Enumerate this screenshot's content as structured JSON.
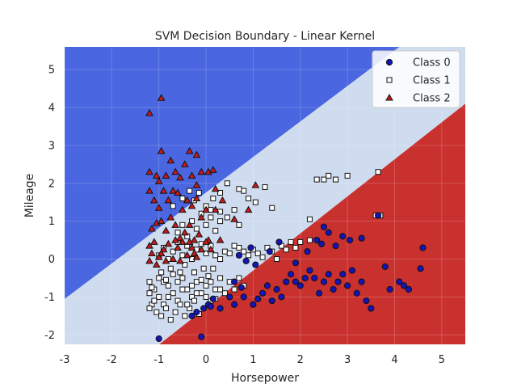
{
  "chart_data": {
    "type": "scatter",
    "title": "SVM Decision Boundary - Linear Kernel",
    "xlabel": "Horsepower",
    "ylabel": "Mileage",
    "xlim": [
      -3,
      5.5
    ],
    "ylim": [
      -2.25,
      5.6
    ],
    "xticks": [
      -3,
      -2,
      -1,
      0,
      1,
      2,
      3,
      4,
      5
    ],
    "yticks": [
      -2,
      -1,
      0,
      1,
      2,
      3,
      4,
      5
    ],
    "grid": true,
    "legend_position": "top-right",
    "regions": [
      {
        "class": "Class 2",
        "color": "#c9312f",
        "boundary_lower": {
          "x0": -0.99,
          "x1": 5.5,
          "y_at_x0": -2.25,
          "y_at_x1": 4.1
        }
      },
      {
        "class": "Class 0",
        "color": "#4a66e0",
        "boundary_upper": {
          "x0": -3.0,
          "x1": 4.1,
          "y_at_x0": -1.05,
          "y_at_x1": 5.6
        }
      },
      {
        "class": "Class 1",
        "color": "#cfdcef"
      }
    ],
    "series": [
      {
        "name": "Class 0",
        "marker": "circle",
        "color": "#1414b8",
        "points": [
          [
            -1.0,
            -2.1
          ],
          [
            -0.1,
            -2.05
          ],
          [
            -0.3,
            -1.5
          ],
          [
            -0.2,
            -1.4
          ],
          [
            0.05,
            -1.2
          ],
          [
            0.15,
            -1.05
          ],
          [
            0.3,
            -1.3
          ],
          [
            0.5,
            -1.0
          ],
          [
            0.6,
            -1.2
          ],
          [
            0.8,
            -1.0
          ],
          [
            1.0,
            -1.2
          ],
          [
            1.1,
            -1.05
          ],
          [
            1.2,
            -0.9
          ],
          [
            1.3,
            -0.7
          ],
          [
            1.4,
            -1.1
          ],
          [
            1.5,
            -0.8
          ],
          [
            1.6,
            -1.0
          ],
          [
            1.7,
            -0.6
          ],
          [
            1.8,
            -0.4
          ],
          [
            1.9,
            -0.6
          ],
          [
            2.0,
            -0.7
          ],
          [
            2.1,
            -0.5
          ],
          [
            2.2,
            -0.3
          ],
          [
            2.3,
            -0.5
          ],
          [
            2.4,
            -0.9
          ],
          [
            2.5,
            -0.6
          ],
          [
            2.6,
            -0.4
          ],
          [
            2.7,
            -0.8
          ],
          [
            2.8,
            -0.6
          ],
          [
            2.9,
            -0.4
          ],
          [
            3.0,
            -0.7
          ],
          [
            3.1,
            -0.3
          ],
          [
            3.2,
            -0.9
          ],
          [
            3.3,
            -0.6
          ],
          [
            3.4,
            -1.1
          ],
          [
            3.5,
            -1.3
          ],
          [
            3.8,
            -0.2
          ],
          [
            3.9,
            -0.8
          ],
          [
            4.1,
            -0.6
          ],
          [
            4.2,
            -0.7
          ],
          [
            4.3,
            -0.8
          ],
          [
            4.55,
            -0.25
          ],
          [
            4.6,
            0.3
          ],
          [
            2.35,
            0.5
          ],
          [
            2.45,
            0.4
          ],
          [
            2.6,
            0.7
          ],
          [
            2.9,
            0.6
          ],
          [
            3.05,
            0.5
          ],
          [
            3.3,
            0.55
          ],
          [
            2.75,
            0.35
          ],
          [
            3.65,
            1.15
          ],
          [
            2.5,
            0.85
          ],
          [
            0.7,
            0.1
          ],
          [
            0.85,
            -0.05
          ],
          [
            1.35,
            0.2
          ],
          [
            1.55,
            0.45
          ],
          [
            1.9,
            -0.1
          ],
          [
            2.15,
            0.2
          ],
          [
            1.05,
            -0.15
          ],
          [
            0.95,
            0.3
          ],
          [
            0.6,
            -0.6
          ],
          [
            0.75,
            -0.75
          ],
          [
            -0.05,
            -1.3
          ],
          [
            0.1,
            -1.25
          ]
        ]
      },
      {
        "name": "Class 1",
        "marker": "square",
        "color": "#ffffff",
        "points": [
          [
            -1.2,
            -0.6
          ],
          [
            -1.1,
            -0.8
          ],
          [
            -1.0,
            -1.0
          ],
          [
            -0.9,
            -1.2
          ],
          [
            -0.8,
            -0.7
          ],
          [
            -0.7,
            -0.9
          ],
          [
            -0.6,
            -1.1
          ],
          [
            -0.5,
            -0.5
          ],
          [
            -0.4,
            -0.8
          ],
          [
            -0.3,
            -1.0
          ],
          [
            -0.2,
            -0.6
          ],
          [
            -0.1,
            -0.9
          ],
          [
            0.0,
            -0.7
          ],
          [
            0.1,
            -1.1
          ],
          [
            0.2,
            -0.8
          ],
          [
            0.3,
            -0.5
          ],
          [
            0.4,
            -0.9
          ],
          [
            -1.15,
            -1.2
          ],
          [
            -1.05,
            -1.4
          ],
          [
            -0.95,
            -1.5
          ],
          [
            -0.85,
            -1.3
          ],
          [
            -0.75,
            -1.6
          ],
          [
            -0.65,
            -1.4
          ],
          [
            -0.55,
            -1.2
          ],
          [
            -0.45,
            -1.5
          ],
          [
            -0.35,
            -1.3
          ],
          [
            -0.25,
            -1.1
          ],
          [
            -0.15,
            -1.45
          ],
          [
            -1.2,
            -0.9
          ],
          [
            -1.1,
            -1.1
          ],
          [
            -1.0,
            -0.5
          ],
          [
            -0.9,
            -0.6
          ],
          [
            -0.8,
            -1.0
          ],
          [
            -0.7,
            -0.4
          ],
          [
            -0.6,
            -0.6
          ],
          [
            -0.5,
            -0.8
          ],
          [
            -0.4,
            -1.2
          ],
          [
            -0.3,
            -0.7
          ],
          [
            -0.2,
            -0.9
          ],
          [
            -0.1,
            -0.55
          ],
          [
            0.0,
            -1.0
          ],
          [
            0.1,
            -0.6
          ],
          [
            0.2,
            -1.05
          ],
          [
            0.3,
            -0.8
          ],
          [
            0.5,
            -0.6
          ],
          [
            0.6,
            -0.8
          ],
          [
            0.7,
            -0.5
          ],
          [
            0.8,
            -0.7
          ],
          [
            -1.0,
            0.1
          ],
          [
            -0.9,
            0.3
          ],
          [
            -0.8,
            0.0
          ],
          [
            -0.7,
            0.2
          ],
          [
            -0.6,
            0.45
          ],
          [
            -0.5,
            0.1
          ],
          [
            -0.4,
            0.35
          ],
          [
            -0.3,
            0.0
          ],
          [
            -0.2,
            0.25
          ],
          [
            -0.1,
            0.4
          ],
          [
            0.0,
            0.15
          ],
          [
            0.1,
            0.35
          ],
          [
            0.2,
            0.1
          ],
          [
            0.3,
            0.0
          ],
          [
            0.4,
            0.2
          ],
          [
            0.5,
            0.15
          ],
          [
            0.6,
            0.35
          ],
          [
            0.7,
            0.3
          ],
          [
            0.8,
            0.2
          ],
          [
            0.9,
            0.1
          ],
          [
            1.0,
            0.25
          ],
          [
            1.1,
            0.15
          ],
          [
            1.2,
            0.05
          ],
          [
            1.3,
            0.3
          ],
          [
            1.4,
            0.2
          ],
          [
            1.5,
            0.0
          ],
          [
            1.6,
            0.35
          ],
          [
            1.7,
            0.25
          ],
          [
            1.8,
            0.45
          ],
          [
            1.9,
            0.3
          ],
          [
            2.0,
            0.45
          ],
          [
            2.2,
            0.5
          ],
          [
            -0.6,
            0.7
          ],
          [
            -0.5,
            0.9
          ],
          [
            -0.4,
            0.6
          ],
          [
            -0.3,
            1.0
          ],
          [
            -0.2,
            0.8
          ],
          [
            -0.1,
            1.2
          ],
          [
            0.0,
            0.9
          ],
          [
            0.1,
            1.1
          ],
          [
            0.2,
            0.75
          ],
          [
            0.3,
            1.0
          ],
          [
            -0.7,
            1.4
          ],
          [
            -0.5,
            1.6
          ],
          [
            -0.35,
            1.8
          ],
          [
            -0.25,
            1.55
          ],
          [
            -0.15,
            1.75
          ],
          [
            0.0,
            1.4
          ],
          [
            0.1,
            1.3
          ],
          [
            0.15,
            1.6
          ],
          [
            0.3,
            1.25
          ],
          [
            0.45,
            1.1
          ],
          [
            0.6,
            1.3
          ],
          [
            0.7,
            0.9
          ],
          [
            0.8,
            1.8
          ],
          [
            0.9,
            1.6
          ],
          [
            1.05,
            1.5
          ],
          [
            1.25,
            1.9
          ],
          [
            1.4,
            1.35
          ],
          [
            0.7,
            1.85
          ],
          [
            0.45,
            2.0
          ],
          [
            0.3,
            1.75
          ],
          [
            2.35,
            2.1
          ],
          [
            2.5,
            2.1
          ],
          [
            2.6,
            2.2
          ],
          [
            2.75,
            2.1
          ],
          [
            3.65,
            2.3
          ],
          [
            3.0,
            2.2
          ],
          [
            3.6,
            1.15
          ],
          [
            3.7,
            1.15
          ],
          [
            2.2,
            1.05
          ],
          [
            -1.2,
            -1.3
          ],
          [
            -0.95,
            -0.35
          ],
          [
            -0.85,
            -0.55
          ],
          [
            -0.75,
            -0.25
          ],
          [
            -0.55,
            -0.35
          ],
          [
            -0.45,
            -0.15
          ],
          [
            -0.25,
            -0.35
          ],
          [
            -0.05,
            -0.25
          ],
          [
            0.05,
            -0.45
          ],
          [
            0.15,
            -0.25
          ],
          [
            -1.15,
            -0.75
          ]
        ]
      },
      {
        "name": "Class 2",
        "marker": "triangle",
        "color": "#c91a1a",
        "points": [
          [
            -1.2,
            3.85
          ],
          [
            -0.95,
            4.25
          ],
          [
            -1.2,
            2.3
          ],
          [
            -1.05,
            2.2
          ],
          [
            -0.95,
            2.85
          ],
          [
            -0.85,
            2.2
          ],
          [
            -0.75,
            2.6
          ],
          [
            -0.55,
            2.15
          ],
          [
            -0.45,
            2.5
          ],
          [
            -0.3,
            2.2
          ],
          [
            -0.2,
            2.75
          ],
          [
            -0.1,
            2.3
          ],
          [
            0.05,
            2.3
          ],
          [
            0.15,
            2.35
          ],
          [
            -1.2,
            1.8
          ],
          [
            -1.1,
            1.55
          ],
          [
            -1.0,
            1.35
          ],
          [
            -0.9,
            1.8
          ],
          [
            -0.8,
            1.55
          ],
          [
            -0.7,
            1.8
          ],
          [
            -0.6,
            1.75
          ],
          [
            -0.5,
            1.3
          ],
          [
            -0.4,
            1.55
          ],
          [
            -0.3,
            1.4
          ],
          [
            -0.2,
            1.6
          ],
          [
            -0.1,
            1.1
          ],
          [
            0.0,
            1.3
          ],
          [
            0.2,
            1.3
          ],
          [
            0.35,
            1.55
          ],
          [
            -1.15,
            0.8
          ],
          [
            -1.05,
            0.95
          ],
          [
            -0.95,
            1.0
          ],
          [
            -0.85,
            0.75
          ],
          [
            -0.75,
            1.1
          ],
          [
            -0.65,
            0.9
          ],
          [
            -0.55,
            0.55
          ],
          [
            -0.45,
            0.7
          ],
          [
            -0.35,
            0.9
          ],
          [
            -0.25,
            0.5
          ],
          [
            -0.15,
            0.65
          ],
          [
            0.05,
            0.5
          ],
          [
            -1.2,
            0.35
          ],
          [
            -1.15,
            0.15
          ],
          [
            -1.1,
            0.45
          ],
          [
            -1.0,
            0.05
          ],
          [
            -0.9,
            0.25
          ],
          [
            -0.8,
            0.4
          ],
          [
            -0.7,
            0.0
          ],
          [
            -0.6,
            0.3
          ],
          [
            -0.5,
            0.45
          ],
          [
            -0.4,
            0.1
          ],
          [
            -0.3,
            0.3
          ],
          [
            -0.2,
            0.05
          ],
          [
            -0.1,
            0.25
          ],
          [
            0.0,
            0.45
          ],
          [
            -1.2,
            -0.05
          ],
          [
            -1.05,
            -0.15
          ],
          [
            -0.95,
            0.15
          ],
          [
            -0.85,
            -0.05
          ],
          [
            -0.65,
            0.5
          ],
          [
            -0.55,
            -0.05
          ],
          [
            -0.35,
            0.45
          ],
          [
            -0.25,
            0.15
          ],
          [
            0.1,
            0.25
          ],
          [
            0.3,
            0.5
          ],
          [
            0.6,
            1.05
          ],
          [
            0.9,
            1.3
          ],
          [
            1.05,
            1.95
          ],
          [
            0.2,
            1.85
          ],
          [
            -0.35,
            2.85
          ],
          [
            -0.2,
            1.95
          ],
          [
            -0.65,
            2.3
          ],
          [
            -1.0,
            2.05
          ]
        ]
      }
    ]
  }
}
